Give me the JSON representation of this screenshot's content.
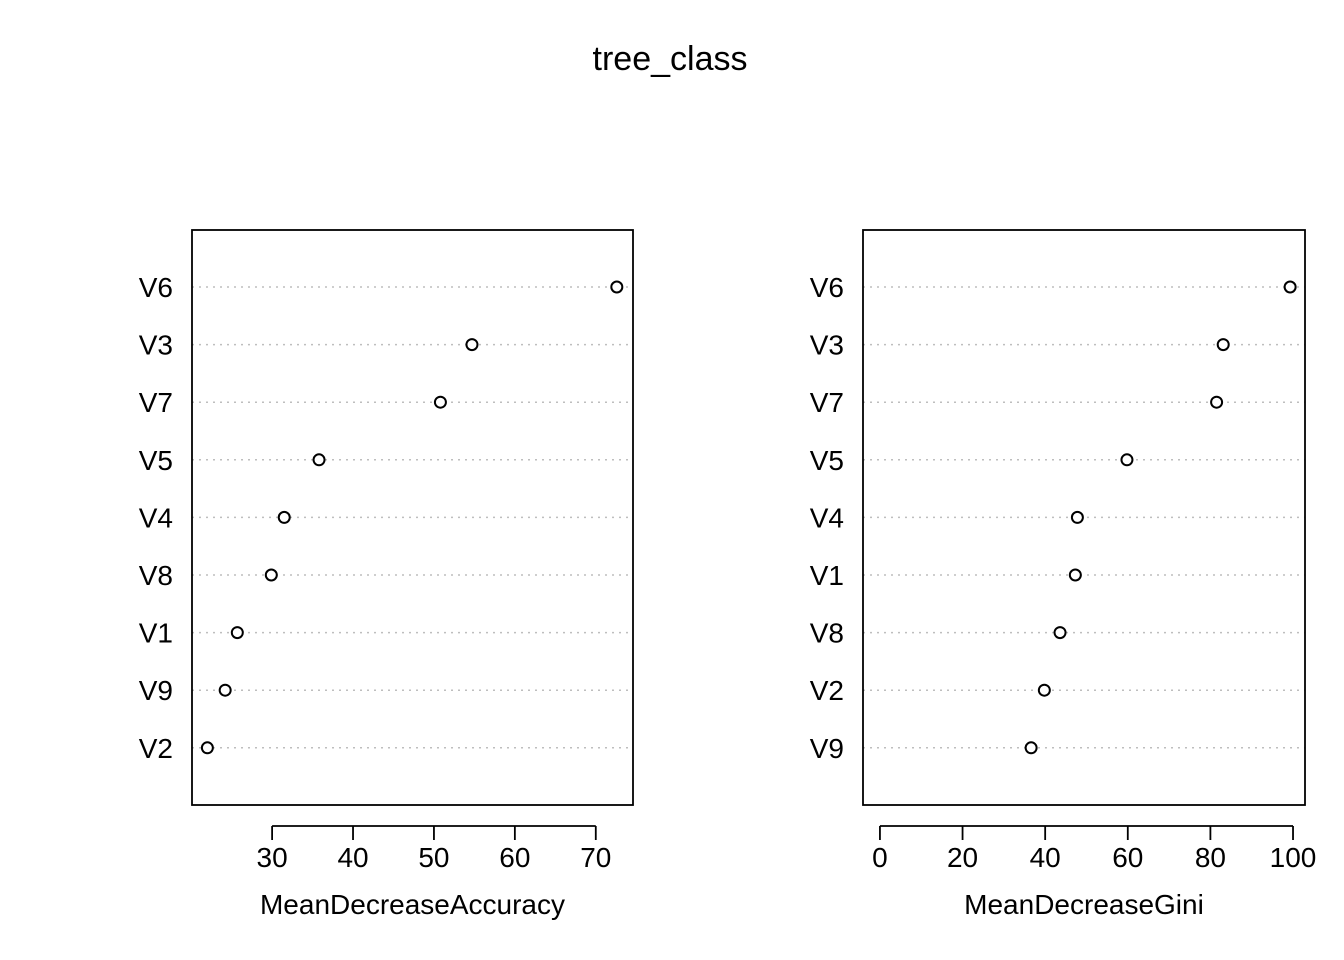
{
  "title": "tree_class",
  "chart_data": [
    {
      "type": "scatter",
      "xlabel": "MeanDecreaseAccuracy",
      "xlim": [
        20.1,
        74.6
      ],
      "xticks": [
        30,
        40,
        50,
        60,
        70
      ],
      "grid": "horizontal dotted",
      "categories": [
        "V6",
        "V3",
        "V7",
        "V5",
        "V4",
        "V8",
        "V1",
        "V9",
        "V2"
      ],
      "values": [
        72.6,
        54.7,
        50.8,
        35.8,
        31.5,
        29.9,
        25.7,
        24.2,
        22.0
      ]
    },
    {
      "type": "scatter",
      "xlabel": "MeanDecreaseGini",
      "xlim": [
        -4.1,
        102.9
      ],
      "xticks": [
        0,
        20,
        40,
        60,
        80,
        100
      ],
      "grid": "horizontal dotted",
      "categories": [
        "V6",
        "V3",
        "V7",
        "V5",
        "V4",
        "V1",
        "V8",
        "V2",
        "V9"
      ],
      "values": [
        99.3,
        83.1,
        81.5,
        59.8,
        47.8,
        47.3,
        43.6,
        39.8,
        36.6
      ]
    }
  ]
}
